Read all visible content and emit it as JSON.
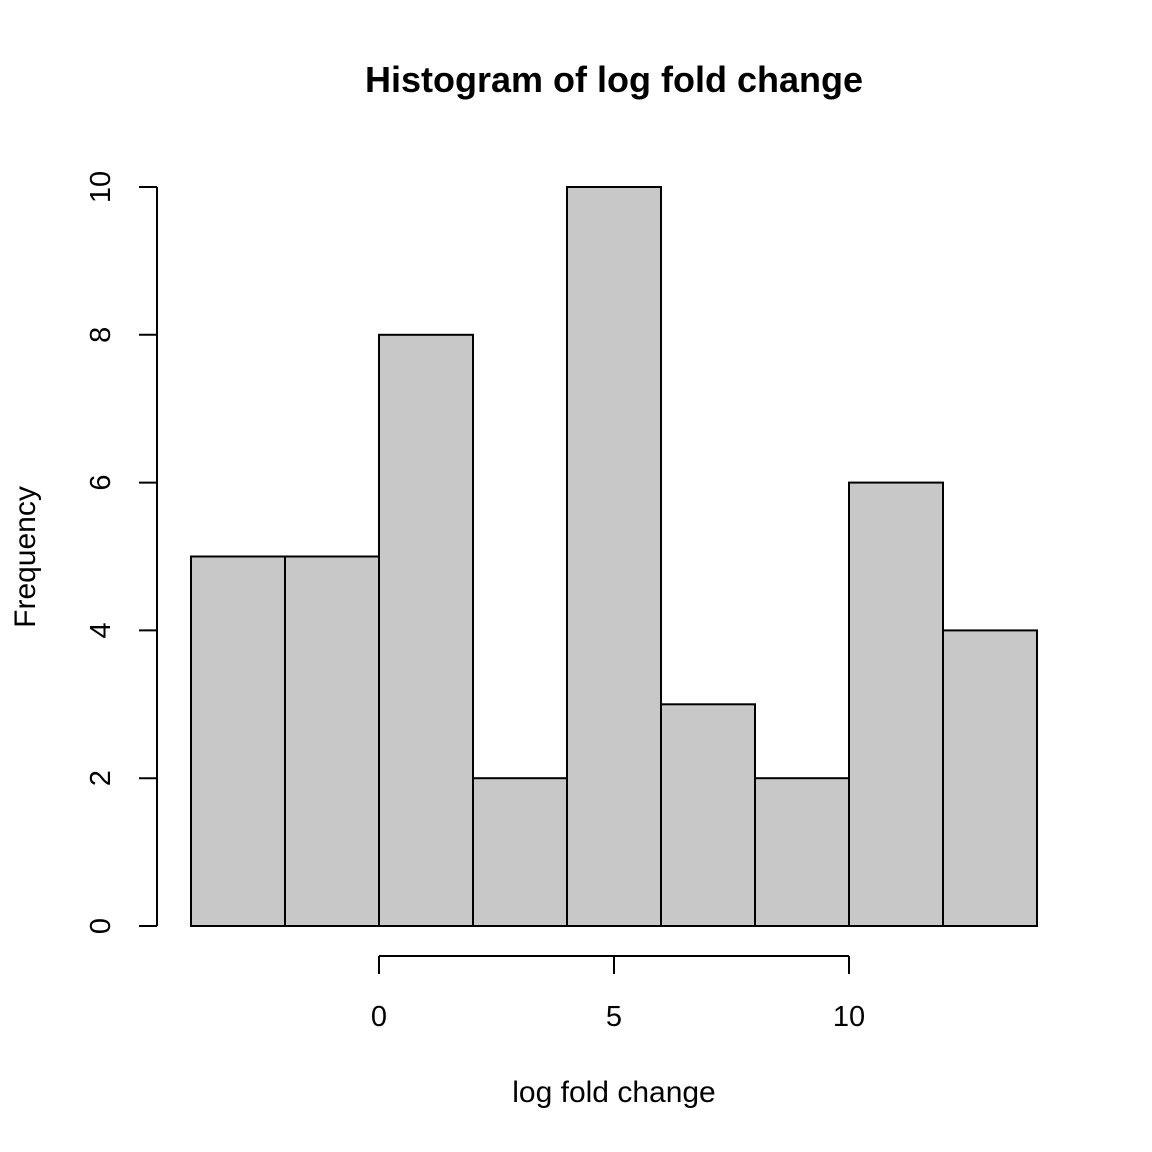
{
  "chart_data": {
    "type": "bar",
    "title": "Histogram of log fold change",
    "xlabel": "log fold change",
    "ylabel": "Frequency",
    "bins": [
      {
        "x0": -4,
        "x1": -2,
        "count": 5
      },
      {
        "x0": -2,
        "x1": 0,
        "count": 5
      },
      {
        "x0": 0,
        "x1": 2,
        "count": 8
      },
      {
        "x0": 2,
        "x1": 4,
        "count": 2
      },
      {
        "x0": 4,
        "x1": 6,
        "count": 10
      },
      {
        "x0": 6,
        "x1": 8,
        "count": 3
      },
      {
        "x0": 8,
        "x1": 10,
        "count": 2
      },
      {
        "x0": 10,
        "x1": 12,
        "count": 6
      },
      {
        "x0": 12,
        "x1": 14,
        "count": 4
      }
    ],
    "xlim": [
      -4,
      14
    ],
    "ylim": [
      0,
      10
    ],
    "x_ticks": [
      "0",
      "5",
      "10"
    ],
    "y_ticks": [
      "0",
      "2",
      "4",
      "6",
      "8",
      "10"
    ],
    "bar_color": "#c8c8c8",
    "grid": false,
    "legend": "none"
  }
}
